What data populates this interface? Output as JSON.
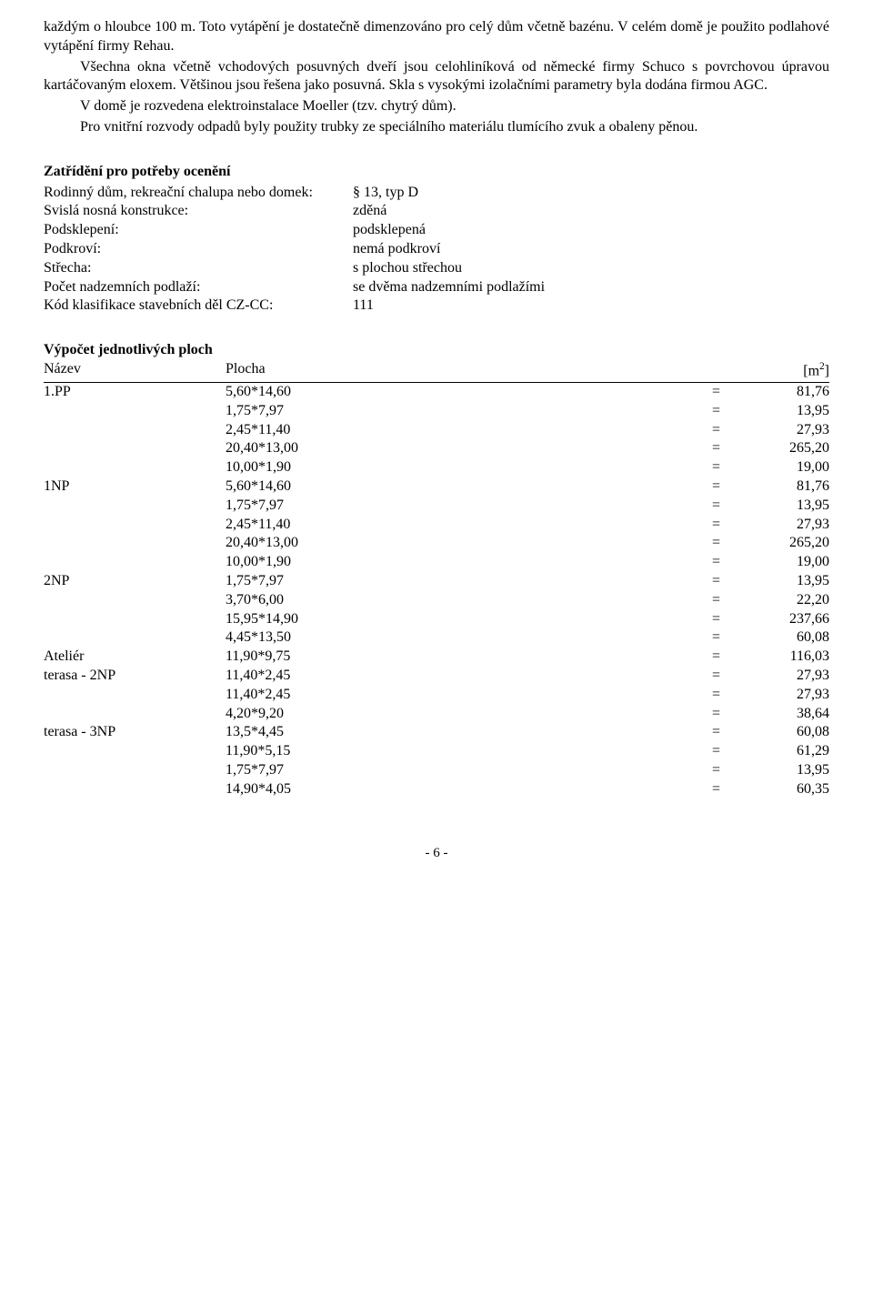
{
  "paragraphs": {
    "p1": "každým o hloubce 100 m. Toto vytápění je dostatečně dimenzováno pro celý dům včetně bazénu. V celém domě je použito podlahové vytápění firmy Rehau.",
    "p2": "Všechna okna včetně vchodových posuvných dveří jsou celohliníková od německé firmy Schuco s povrchovou úpravou kartáčovaným eloxem. Většinou jsou řešena jako posuvná. Skla s vysokými izolačními parametry byla dodána firmou AGC.",
    "p3": "V domě je rozvedena elektroinstalace Moeller (tzv. chytrý dům).",
    "p4": "Pro vnitřní rozvody odpadů byly použity trubky ze speciálního materiálu tlumícího zvuk a obaleny pěnou."
  },
  "classification": {
    "heading": "Zatřídění pro potřeby ocenění",
    "rows": [
      {
        "label": "Rodinný dům, rekreační chalupa nebo domek:",
        "value": "§ 13, typ D"
      },
      {
        "label": "Svislá nosná konstrukce:",
        "value": "zděná"
      },
      {
        "label": "Podsklepení:",
        "value": "podsklepená"
      },
      {
        "label": "Podkroví:",
        "value": "nemá podkroví"
      },
      {
        "label": "Střecha:",
        "value": "s plochou střechou"
      },
      {
        "label": "Počet nadzemních podlaží:",
        "value": "se dvěma nadzemními podlažími"
      },
      {
        "label": "Kód klasifikace stavebních děl CZ-CC:",
        "value": "111"
      }
    ]
  },
  "areas": {
    "heading": "Výpočet jednotlivých ploch",
    "col_name": "Název",
    "col_plocha": "Plocha",
    "col_unit_prefix": "[m",
    "col_unit_sup": "2",
    "col_unit_suffix": "]",
    "rows": [
      {
        "name": "1.PP",
        "expr": "5,60*14,60",
        "eq": "=",
        "val": "81,76"
      },
      {
        "name": "",
        "expr": "1,75*7,97",
        "eq": "=",
        "val": "13,95"
      },
      {
        "name": "",
        "expr": "2,45*11,40",
        "eq": "=",
        "val": "27,93"
      },
      {
        "name": "",
        "expr": "20,40*13,00",
        "eq": "=",
        "val": "265,20"
      },
      {
        "name": "",
        "expr": "10,00*1,90",
        "eq": "=",
        "val": "19,00"
      },
      {
        "name": "1NP",
        "expr": "5,60*14,60",
        "eq": "=",
        "val": "81,76"
      },
      {
        "name": "",
        "expr": "1,75*7,97",
        "eq": "=",
        "val": "13,95"
      },
      {
        "name": "",
        "expr": "2,45*11,40",
        "eq": "=",
        "val": "27,93"
      },
      {
        "name": "",
        "expr": "20,40*13,00",
        "eq": "=",
        "val": "265,20"
      },
      {
        "name": "",
        "expr": "10,00*1,90",
        "eq": "=",
        "val": "19,00"
      },
      {
        "name": "2NP",
        "expr": "1,75*7,97",
        "eq": "=",
        "val": "13,95"
      },
      {
        "name": "",
        "expr": "3,70*6,00",
        "eq": "=",
        "val": "22,20"
      },
      {
        "name": "",
        "expr": "15,95*14,90",
        "eq": "=",
        "val": "237,66"
      },
      {
        "name": "",
        "expr": "4,45*13,50",
        "eq": "=",
        "val": "60,08"
      },
      {
        "name": "Ateliér",
        "expr": "11,90*9,75",
        "eq": "=",
        "val": "116,03"
      },
      {
        "name": "terasa - 2NP",
        "expr": "11,40*2,45",
        "eq": "=",
        "val": "27,93"
      },
      {
        "name": "",
        "expr": "11,40*2,45",
        "eq": "=",
        "val": "27,93"
      },
      {
        "name": "",
        "expr": "4,20*9,20",
        "eq": "=",
        "val": "38,64"
      },
      {
        "name": "terasa - 3NP",
        "expr": "13,5*4,45",
        "eq": "=",
        "val": "60,08"
      },
      {
        "name": "",
        "expr": "11,90*5,15",
        "eq": "=",
        "val": "61,29"
      },
      {
        "name": "",
        "expr": "1,75*7,97",
        "eq": "=",
        "val": "13,95"
      },
      {
        "name": "",
        "expr": "14,90*4,05",
        "eq": "=",
        "val": "60,35"
      }
    ]
  },
  "footer": "- 6 -"
}
